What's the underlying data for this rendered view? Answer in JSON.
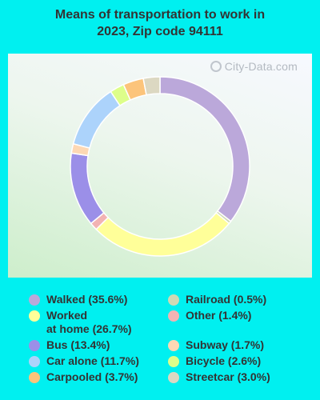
{
  "title": "Means of transportation to work in\n2023, Zip code 94111",
  "watermark": "City-Data.com",
  "chart_data": {
    "type": "donut",
    "title": "Means of transportation to work in 2023, Zip code 94111",
    "series": [
      {
        "name": "Walked",
        "value": 35.6,
        "color": "#bba8da",
        "label": "Walked (35.6%)"
      },
      {
        "name": "Railroad",
        "value": 0.5,
        "color": "#cfd9b4",
        "label": "Railroad (0.5%)"
      },
      {
        "name": "Worked at home",
        "value": 26.7,
        "color": "#ffff99",
        "label": "Worked\nat home (26.7%)"
      },
      {
        "name": "Other",
        "value": 1.4,
        "color": "#f2b3b3",
        "label": "Other (1.4%)"
      },
      {
        "name": "Bus",
        "value": 13.4,
        "color": "#9b8fe8",
        "label": "Bus (13.4%)"
      },
      {
        "name": "Subway",
        "value": 1.7,
        "color": "#fdd8b4",
        "label": "Subway (1.7%)"
      },
      {
        "name": "Car alone",
        "value": 11.7,
        "color": "#acd3fb",
        "label": "Car alone (11.7%)"
      },
      {
        "name": "Bicycle",
        "value": 2.6,
        "color": "#ddfe8a",
        "label": "Bicycle (2.6%)"
      },
      {
        "name": "Carpooled",
        "value": 3.7,
        "color": "#fcc47b",
        "label": "Carpooled (3.7%)"
      },
      {
        "name": "Streetcar",
        "value": 3.0,
        "color": "#dcd8c2",
        "label": "Streetcar (3.0%)"
      }
    ],
    "slice_order": [
      "Walked",
      "Railroad",
      "Worked at home",
      "Other",
      "Bus",
      "Subway",
      "Car alone",
      "Bicycle",
      "Carpooled",
      "Streetcar"
    ],
    "legend_placement": "bottom"
  }
}
